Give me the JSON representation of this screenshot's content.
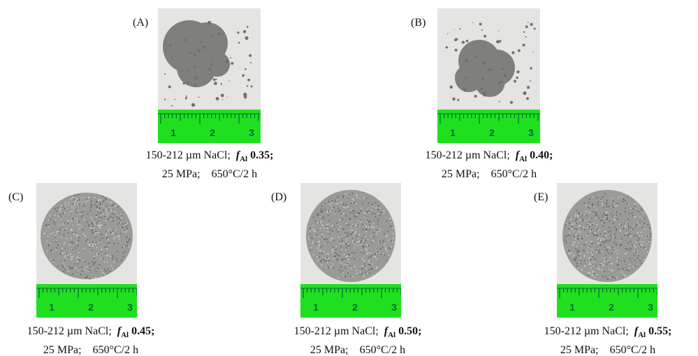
{
  "panels": [
    {
      "label": "(A)",
      "material": "150-212 µm NaCl;",
      "symbol": "f",
      "subscript": "Al",
      "fraction": "0.35;",
      "pressure": "25 MPa;",
      "sintering": "650°C/2 h"
    },
    {
      "label": "(B)",
      "material": "150-212 µm NaCl;",
      "symbol": "f",
      "subscript": "Al",
      "fraction": "0.40;",
      "pressure": "25 MPa;",
      "sintering": "650°C/2 h"
    },
    {
      "label": "(C)",
      "material": "150-212 µm NaCl;",
      "symbol": "f",
      "subscript": "Al",
      "fraction": "0.45;",
      "pressure": "25 MPa;",
      "sintering": "650°C/2 h"
    },
    {
      "label": "(D)",
      "material": "150-212 µm NaCl;",
      "symbol": "f",
      "subscript": "Al",
      "fraction": "0.50;",
      "pressure": "25 MPa;",
      "sintering": "650°C/2 h"
    },
    {
      "label": "(E)",
      "material": "150-212 µm NaCl;",
      "symbol": "f",
      "subscript": "Al",
      "fraction": "0.55;",
      "pressure": "25 MPa;",
      "sintering": "650°C/2 h"
    }
  ],
  "ruler_labels": [
    "1",
    "2",
    "3"
  ]
}
